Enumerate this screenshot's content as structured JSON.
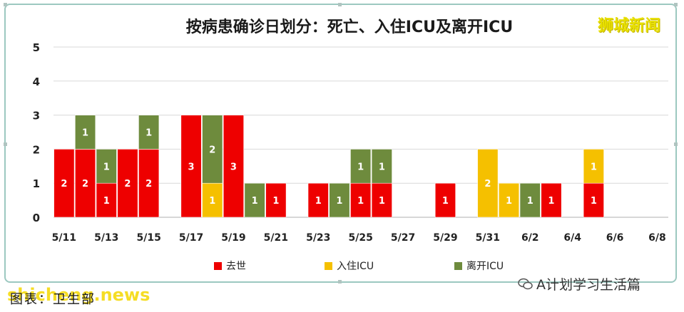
{
  "chart_data": {
    "type": "bar",
    "stacked": true,
    "title": "按病患确诊日划分：死亡、入住ICU及离开ICU",
    "categories": [
      "5/11",
      "5/12",
      "5/13",
      "5/14",
      "5/15",
      "5/16",
      "5/17",
      "5/18",
      "5/19",
      "5/20",
      "5/21",
      "5/22",
      "5/23",
      "5/24",
      "5/25",
      "5/26",
      "5/27",
      "5/28",
      "5/29",
      "5/30",
      "5/31",
      "6/1",
      "6/2",
      "6/3",
      "6/4",
      "6/5",
      "6/6",
      "6/7",
      "6/8"
    ],
    "x_tick_labels": [
      "5/11",
      "5/13",
      "5/15",
      "5/17",
      "5/19",
      "5/21",
      "5/23",
      "5/25",
      "5/27",
      "5/29",
      "5/31",
      "6/2",
      "6/4",
      "6/6",
      "6/8"
    ],
    "ylim": [
      0,
      5
    ],
    "y_ticks": [
      0,
      1,
      2,
      3,
      4,
      5
    ],
    "grid": true,
    "legend_position": "bottom",
    "series": [
      {
        "name": "去世",
        "color": "#ee0000",
        "values": [
          2,
          2,
          1,
          2,
          2,
          0,
          3,
          0,
          3,
          0,
          1,
          0,
          1,
          0,
          1,
          1,
          0,
          0,
          1,
          0,
          0,
          0,
          0,
          1,
          0,
          1,
          0,
          0,
          0
        ]
      },
      {
        "name": "入住ICU",
        "color": "#f5c000",
        "values": [
          0,
          0,
          0,
          0,
          0,
          0,
          0,
          1,
          0,
          0,
          0,
          0,
          0,
          0,
          0,
          0,
          0,
          0,
          0,
          0,
          2,
          1,
          0,
          0,
          0,
          1,
          0,
          0,
          0
        ]
      },
      {
        "name": "离开ICU",
        "color": "#6e8b3d",
        "values": [
          0,
          1,
          1,
          0,
          1,
          0,
          0,
          2,
          0,
          1,
          0,
          0,
          0,
          1,
          1,
          1,
          0,
          0,
          0,
          0,
          0,
          0,
          1,
          0,
          0,
          0,
          0,
          0,
          0
        ]
      }
    ]
  },
  "watermarks": {
    "top_right": "狮城新闻",
    "source": "图表：卫生部",
    "site": "shicheng.news",
    "wechat": "A计划学习生活篇"
  },
  "colors": {
    "frame_border": "#9cc8c0",
    "grid": "#d9d9d9",
    "axis": "#bfbfbf"
  }
}
